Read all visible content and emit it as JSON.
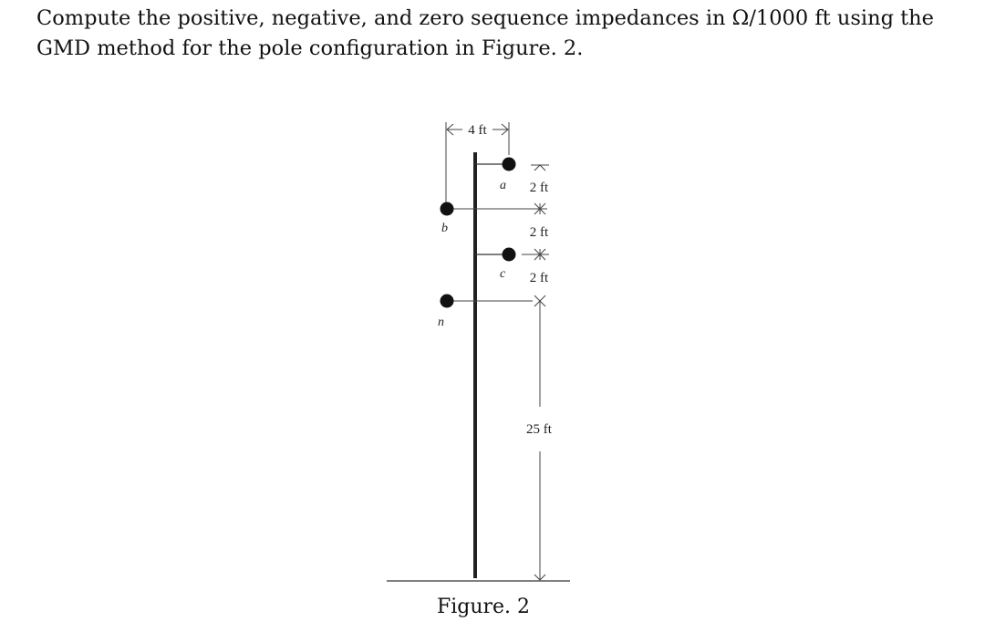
{
  "question": {
    "line1": "Compute the positive, negative, and zero sequence impedances in Ω/1000 ft using the",
    "line2": "GMD method for the pole configuration in Figure. 2."
  },
  "figure": {
    "caption": "Figure. 2",
    "conductor_labels": {
      "a": "a",
      "b": "b",
      "c": "c",
      "n": "n"
    },
    "dimensions": {
      "crossarm_width": "4 ft",
      "spacing_a_b": "2 ft",
      "spacing_b_c": "2 ft",
      "spacing_c_n": "2 ft",
      "height_n_ground": "25 ft"
    }
  }
}
